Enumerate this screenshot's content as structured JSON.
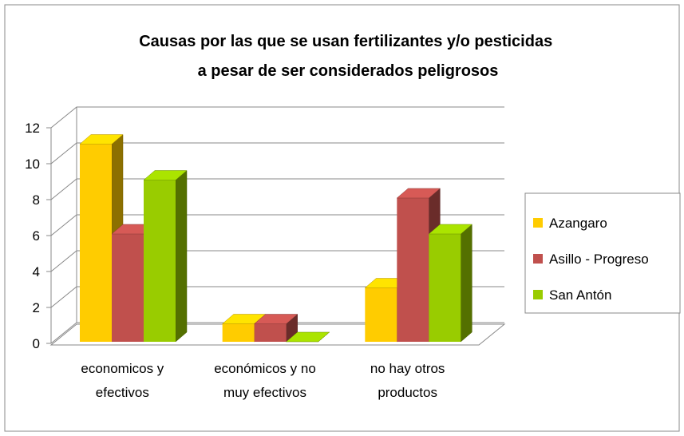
{
  "chart_data": {
    "type": "bar3d",
    "title": "Causas por las que se usan fertilizantes y/o pesticidas a pesar de ser considerados peligrosos",
    "categories": [
      "economicos y efectivos",
      "económicos y no muy efectivos",
      "no hay otros productos"
    ],
    "series": [
      {
        "name": "Azangaro",
        "color": "#ffcc00",
        "values": [
          11,
          1,
          3
        ]
      },
      {
        "name": "Asillo - Progreso",
        "color": "#c0504d",
        "values": [
          6,
          1,
          8
        ]
      },
      {
        "name": "San Antón",
        "color": "#99cc00",
        "values": [
          9,
          0,
          6
        ]
      }
    ],
    "ylim": [
      0,
      12
    ],
    "yticks": [
      0,
      2,
      4,
      6,
      8,
      10,
      12
    ],
    "grid": true,
    "legend": "right"
  }
}
